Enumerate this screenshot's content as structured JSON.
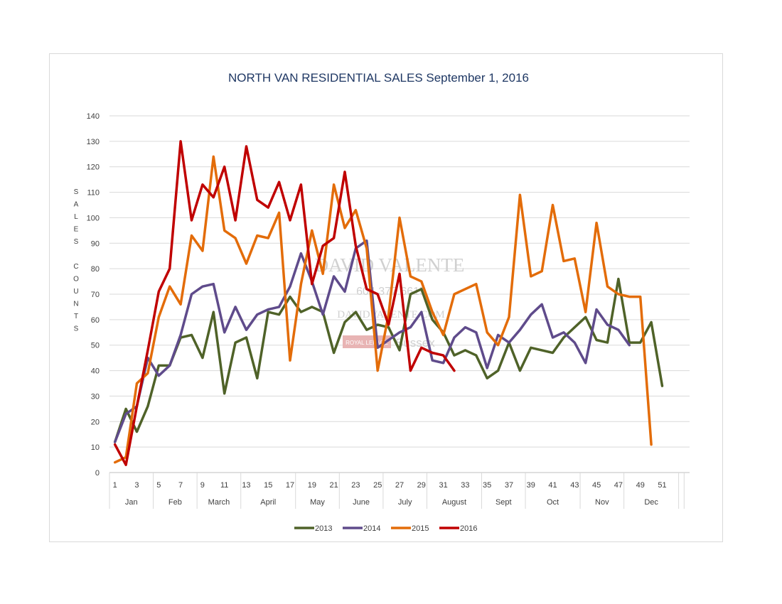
{
  "chart_data": {
    "type": "line",
    "title": "NORTH VAN RESIDENTIAL SALES September 1, 2016",
    "ylabel": "SALES COUNTS",
    "ylabel_lines": [
      "S",
      "A",
      "L",
      "E",
      "S",
      "",
      "C",
      "O",
      "U",
      "N",
      "T",
      "S"
    ],
    "ylim": [
      0,
      140
    ],
    "yticks": [
      0,
      10,
      20,
      30,
      40,
      50,
      60,
      70,
      80,
      90,
      100,
      110,
      120,
      130,
      140
    ],
    "grid": true,
    "legend_position": "bottom",
    "x_tick_labels": [
      "1",
      "3",
      "5",
      "7",
      "9",
      "11",
      "13",
      "15",
      "17",
      "19",
      "21",
      "23",
      "25",
      "27",
      "29",
      "31",
      "33",
      "35",
      "37",
      "39",
      "41",
      "43",
      "45",
      "47",
      "49",
      "51"
    ],
    "months": [
      {
        "label": "Jan",
        "start": 1,
        "end": 5
      },
      {
        "label": "Feb",
        "start": 5,
        "end": 9
      },
      {
        "label": "March",
        "start": 9,
        "end": 13
      },
      {
        "label": "April",
        "start": 13,
        "end": 18
      },
      {
        "label": "May",
        "start": 18,
        "end": 22
      },
      {
        "label": "June",
        "start": 22,
        "end": 26
      },
      {
        "label": "July",
        "start": 26,
        "end": 30
      },
      {
        "label": "August",
        "start": 30,
        "end": 35
      },
      {
        "label": "Sept",
        "start": 35,
        "end": 39
      },
      {
        "label": "Oct",
        "start": 39,
        "end": 44
      },
      {
        "label": "Nov",
        "start": 44,
        "end": 48
      },
      {
        "label": "Dec",
        "start": 48,
        "end": 53
      }
    ],
    "series": [
      {
        "name": "2013",
        "color": "#4f6228",
        "values": [
          12,
          25,
          16,
          26,
          42,
          42,
          53,
          54,
          45,
          63,
          31,
          51,
          53,
          37,
          63,
          62,
          69,
          63,
          65,
          63,
          47,
          59,
          63,
          56,
          58,
          57,
          48,
          70,
          72,
          60,
          55,
          46,
          48,
          46,
          37,
          40,
          51,
          40,
          49,
          48,
          47,
          53,
          57,
          61,
          52,
          51,
          76,
          51,
          51,
          59,
          34
        ]
      },
      {
        "name": "2014",
        "color": "#5f4b8b",
        "values": [
          12,
          23,
          26,
          45,
          38,
          42,
          54,
          70,
          73,
          74,
          55,
          65,
          56,
          62,
          64,
          65,
          73,
          86,
          75,
          62,
          77,
          71,
          88,
          91,
          49,
          52,
          55,
          57,
          63,
          44,
          43,
          53,
          57,
          55,
          41,
          54,
          51,
          56,
          62,
          66,
          53,
          55,
          51,
          43,
          64,
          58,
          56,
          50,
          null,
          null,
          null
        ]
      },
      {
        "name": "2015",
        "color": "#e36c09",
        "values": [
          4,
          6,
          35,
          39,
          61,
          73,
          66,
          93,
          87,
          124,
          95,
          92,
          82,
          93,
          92,
          102,
          44,
          74,
          95,
          78,
          113,
          96,
          103,
          88,
          40,
          62,
          100,
          77,
          75,
          63,
          54,
          70,
          72,
          74,
          55,
          50,
          61,
          109,
          77,
          79,
          105,
          83,
          84,
          63,
          98,
          73,
          70,
          69,
          69,
          11,
          null
        ]
      },
      {
        "name": "2016",
        "color": "#c00000",
        "values": [
          11,
          3,
          26,
          48,
          71,
          80,
          130,
          99,
          113,
          108,
          120,
          99,
          128,
          107,
          104,
          114,
          99,
          113,
          74,
          89,
          92,
          118,
          89,
          72,
          70,
          58,
          78,
          40,
          49,
          47,
          46,
          40,
          null,
          null,
          null,
          null,
          null,
          null,
          null,
          null,
          null,
          null,
          null,
          null,
          null,
          null,
          null,
          null,
          null,
          null,
          null
        ]
      }
    ]
  },
  "watermark": {
    "name": "DAVID VALENTE",
    "phone": "604.377.6615",
    "website": "DAVIDVALENTE.COM",
    "brokerage": "ROYAL LEPAGE",
    "office": "Sussex"
  }
}
